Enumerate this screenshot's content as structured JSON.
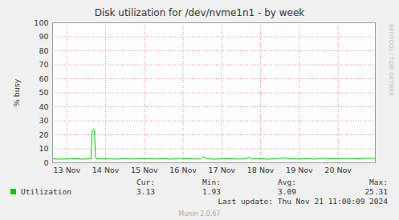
{
  "chart_data": {
    "type": "line",
    "title": "Disk utilization for /dev/nvme1n1 - by week",
    "y_label": "% busy",
    "x": [
      13.13,
      13.3,
      13.5,
      13.7,
      13.9,
      14.05,
      14.12,
      14.15,
      14.18,
      14.21,
      14.24,
      14.4,
      14.6,
      14.8,
      15.0,
      15.2,
      15.4,
      15.6,
      15.8,
      16.0,
      16.2,
      16.4,
      16.6,
      16.8,
      16.95,
      17.02,
      17.1,
      17.3,
      17.5,
      17.7,
      17.9,
      18.1,
      18.2,
      18.3,
      18.5,
      18.7,
      18.9,
      19.1,
      19.3,
      19.5,
      19.7,
      19.9,
      20.1,
      20.3,
      20.5,
      20.7,
      20.9,
      21.1,
      21.3,
      21.46
    ],
    "series": [
      {
        "name": "Utilization",
        "color": "#00cc00",
        "values": [
          2.8,
          2.6,
          2.7,
          2.9,
          2.6,
          2.8,
          2.9,
          22.5,
          24.0,
          23.2,
          3.1,
          2.7,
          2.8,
          2.6,
          2.9,
          2.7,
          2.8,
          3.0,
          2.7,
          2.9,
          2.6,
          3.2,
          2.9,
          2.7,
          2.8,
          4.5,
          2.9,
          2.6,
          2.8,
          2.9,
          2.7,
          2.8,
          3.8,
          2.7,
          2.9,
          2.6,
          3.0,
          3.4,
          2.8,
          2.7,
          2.9,
          2.6,
          3.2,
          2.8,
          2.9,
          3.1,
          3.0,
          2.8,
          3.3,
          3.1
        ],
        "summary": [
          3.13,
          1.93,
          3.09,
          25.31
        ]
      }
    ],
    "summary_labels": [
      "Cur:",
      "Min:",
      "Avg:",
      "Max:"
    ],
    "xlim": [
      13.13,
      21.46
    ],
    "xticks": [
      {
        "value": 13.5,
        "label": "13 Nov"
      },
      {
        "value": 14.5,
        "label": "14 Nov"
      },
      {
        "value": 15.5,
        "label": "15 Nov"
      },
      {
        "value": 16.5,
        "label": "16 Nov"
      },
      {
        "value": 17.5,
        "label": "17 Nov"
      },
      {
        "value": 18.5,
        "label": "18 Nov"
      },
      {
        "value": 19.5,
        "label": "19 Nov"
      },
      {
        "value": 20.5,
        "label": "20 Nov"
      }
    ],
    "ylim": [
      0,
      100
    ],
    "yticks": [
      0,
      10,
      20,
      30,
      40,
      50,
      60,
      70,
      80,
      90,
      100
    ],
    "grid": true,
    "legend": "bottom",
    "last_update": "Last update: Thu Nov 21 11:00:09 2024",
    "footer": "Munin 2.0.67",
    "watermark": "RRDTOOL / TOBI OETIKER"
  }
}
